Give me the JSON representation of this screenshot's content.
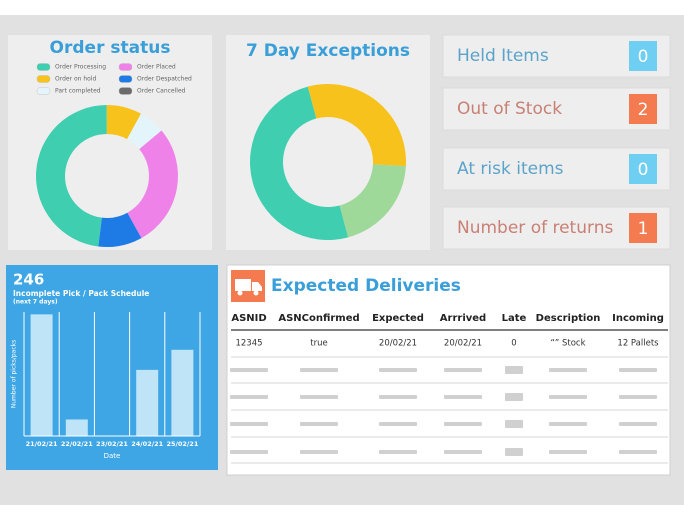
{
  "chart_data": [
    {
      "type": "donut",
      "title": "Order status",
      "categories": [
        "Order Processing",
        "Order on hold",
        "Part completed",
        "Order Placed",
        "Order Despatched",
        "Order Cancelled"
      ],
      "values": [
        48,
        8,
        6,
        28,
        10,
        0
      ],
      "colors": [
        "#3fcfb0",
        "#f8c21c",
        "#e4f4fb",
        "#ee82e8",
        "#1e7be6",
        "#6b6b6b"
      ],
      "legend": "top"
    },
    {
      "type": "donut",
      "title": "7 Day Exceptions",
      "values": [
        50,
        30,
        20
      ],
      "colors": [
        "#3fcfb0",
        "#f8c21c",
        "#9ed99a"
      ]
    },
    {
      "type": "bar",
      "title": "246",
      "subtitle": "Incomplete Pick / Pack Schedule",
      "note": "(next 7 days)",
      "y_label": "Number of picks/packs",
      "x_label": "Date",
      "categories": [
        "21/02/21",
        "22/02/21",
        "23/02/21",
        "24/02/21",
        "25/02/21"
      ],
      "values": [
        103,
        14,
        0,
        56,
        73
      ],
      "color": "#bfe4f8",
      "ylim": [
        0,
        105
      ],
      "grid": true
    }
  ],
  "cards": [
    {
      "label": "Held Items",
      "value": 0,
      "tone": "info"
    },
    {
      "label": "Out of Stock",
      "value": 2,
      "tone": "alert"
    },
    {
      "label": "At risk items",
      "value": 0,
      "tone": "info"
    },
    {
      "label": "Number of returns",
      "value": 1,
      "tone": "alert"
    }
  ],
  "table": {
    "title": "Expected Deliveries",
    "columns": [
      "ASNID",
      "ASNConfirmed",
      "Expected",
      "Arrrived",
      "Late",
      "Description",
      "Incoming"
    ],
    "rows": [
      [
        "12345",
        "true",
        "20/02/21",
        "20/02/21",
        "0",
        "“” Stock",
        "12 Pallets"
      ]
    ]
  }
}
